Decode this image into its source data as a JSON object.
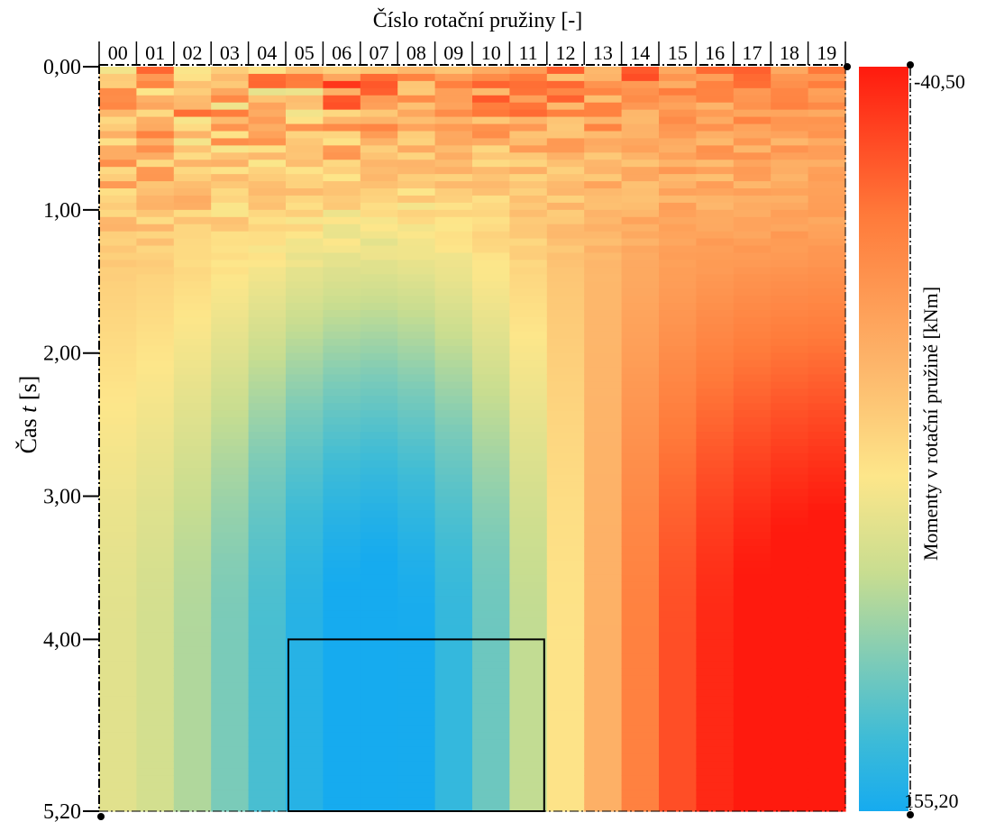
{
  "chart_data": {
    "type": "heatmap",
    "xlabel": "Číslo rotační pružiny [-]",
    "ylabel_prefix": "Čas ",
    "ylabel_var": "t",
    "ylabel_suffix": " [s]",
    "x_categories": [
      "00",
      "01",
      "02",
      "03",
      "04",
      "05",
      "06",
      "07",
      "08",
      "09",
      "10",
      "11",
      "12",
      "13",
      "14",
      "15",
      "16",
      "17",
      "18",
      "19"
    ],
    "y_ticks": [
      "0,00",
      "1,00",
      "2,00",
      "3,00",
      "4,00",
      "5,20"
    ],
    "y_tick_values": [
      0,
      1,
      2,
      3,
      4,
      5.2
    ],
    "ylim": [
      0,
      5.2
    ],
    "colorbar": {
      "label": "Momenty v rotační pružině [kNm]",
      "min_label": "-40,50",
      "max_label": "155,20",
      "min": -40.5,
      "max": 155.2,
      "colors": [
        "#ff1a0e",
        "#ff7a3a",
        "#fdb56a",
        "#fde68a",
        "#c8dd90",
        "#7ccbb8",
        "#3fbcd6",
        "#16abef"
      ]
    },
    "annotation_box": {
      "x_from": "05",
      "x_to": "11",
      "y_from": 4.0,
      "y_to": 5.2
    }
  }
}
